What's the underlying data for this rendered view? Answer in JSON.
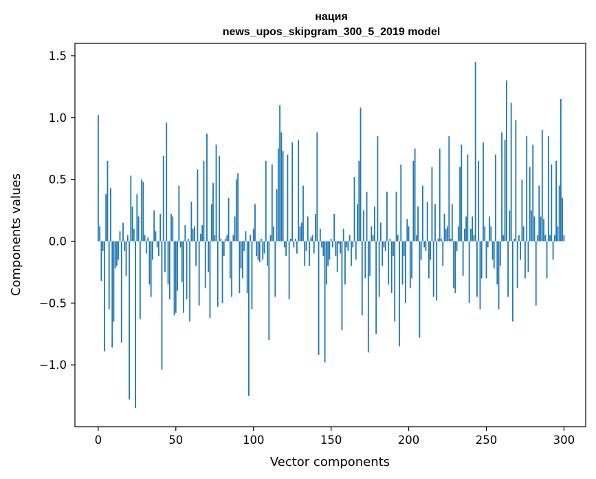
{
  "chart_data": {
    "type": "bar",
    "title": "нация",
    "subtitle": "news_upos_skipgram_300_5_2019 model",
    "xlabel": "Vector components",
    "ylabel": "Components values",
    "xlim": [
      -15,
      314
    ],
    "ylim": [
      -1.5,
      1.6
    ],
    "xticks": [
      0,
      50,
      100,
      150,
      200,
      250,
      300
    ],
    "xtick_labels": [
      "0",
      "50",
      "100",
      "150",
      "200",
      "250",
      "300"
    ],
    "yticks": [
      -1.0,
      -0.5,
      0.0,
      0.5,
      1.0,
      1.5
    ],
    "ytick_labels": [
      "−1.0",
      "−0.5",
      "0.0",
      "0.5",
      "1.0",
      "1.5"
    ],
    "grid": false,
    "bar_color": "#1f77b4",
    "values": [
      1.02,
      0.12,
      -0.32,
      -0.08,
      -0.89,
      0.38,
      0.65,
      -0.55,
      0.43,
      -0.86,
      -0.65,
      -0.22,
      -0.2,
      -0.15,
      0.08,
      -0.82,
      0.15,
      -0.08,
      -0.28,
      0.05,
      -1.28,
      0.53,
      0.28,
      0.1,
      -1.35,
      0.38,
      0.2,
      -0.63,
      0.5,
      0.48,
      0.05,
      -0.1,
      0.03,
      -0.35,
      -0.45,
      -0.15,
      0.25,
      0.08,
      -0.05,
      -0.12,
      0.22,
      -1.04,
      0.69,
      -0.25,
      0.96,
      -0.35,
      -0.47,
      0.22,
      0.2,
      -0.6,
      -0.58,
      -0.4,
      0.45,
      -0.05,
      -0.33,
      -0.58,
      0.13,
      -0.47,
      0.02,
      -0.65,
      0.32,
      0.1,
      0.12,
      -0.2,
      0.58,
      -0.52,
      0.06,
      0.13,
      0.65,
      -0.38,
      0.87,
      -0.25,
      -0.62,
      0.3,
      0.47,
      0.05,
      0.78,
      -0.53,
      0.69,
      0.02,
      -0.5,
      -0.12,
      0.02,
      0.05,
      0.35,
      -0.3,
      -0.45,
      0.05,
      0.2,
      0.5,
      0.55,
      -0.42,
      -0.22,
      -0.3,
      -0.08,
      0.08,
      -0.42,
      -1.25,
      0.05,
      -0.55,
      0.1,
      0.3,
      -0.12,
      -0.15,
      -0.17,
      0.02,
      -0.15,
      -0.1,
      0.65,
      -0.2,
      -0.8,
      0.05,
      0.62,
      0.12,
      -0.45,
      0.42,
      0.75,
      1.1,
      0.88,
      0.73,
      -0.05,
      -0.12,
      0.7,
      -0.47,
      0.02,
      0.8,
      -0.05,
      0.02,
      -0.1,
      0.82,
      0.12,
      0.15,
      0.45,
      -0.2,
      -0.08,
      0.2,
      -0.2,
      0.03,
      0.05,
      -0.1,
      0.22,
      0.88,
      -0.92,
      0.1,
      -0.05,
      -0.12,
      -0.98,
      -0.35,
      -0.2,
      -0.15,
      0.02,
      -0.05,
      0.22,
      -0.12,
      -0.25,
      -0.02,
      -0.1,
      -0.72,
      0.1,
      -0.35,
      -0.05,
      -0.08,
      0.05,
      -0.2,
      -0.05,
      0.52,
      -0.15,
      0.3,
      0.65,
      1.08,
      -0.6,
      0.25,
      -0.3,
      0.4,
      -0.9,
      -0.28,
      0.12,
      0.05,
      0.28,
      -0.75,
      0.85,
      -0.45,
      0.15,
      -0.2,
      -0.05,
      -0.08,
      0.4,
      -0.35,
      0.02,
      -0.42,
      -0.12,
      -0.65,
      0.4,
      0.05,
      -0.85,
      0.62,
      -0.35,
      -0.12,
      -0.5,
      0.18,
      0.12,
      -0.38,
      -0.3,
      0.65,
      0.75,
      0.05,
      0.28,
      -0.78,
      -0.15,
      0.45,
      -0.05,
      -0.08,
      0.32,
      -0.3,
      -0.15,
      0.6,
      -0.45,
      0.3,
      -0.48,
      0.02,
      0.75,
      0.02,
      -0.2,
      0.22,
      0.1,
      0.12,
      0.85,
      0.02,
      0.3,
      -0.38,
      -0.42,
      -0.08,
      0.12,
      0.6,
      0.78,
      -0.28,
      0.1,
      0.2,
      0.7,
      -0.5,
      0.1,
      0.2,
      0.05,
      1.45,
      -0.45,
      0.65,
      -0.55,
      -0.3,
      0.8,
      0.12,
      -0.3,
      -0.05,
      0.2,
      0.12,
      -0.15,
      -0.22,
      0.7,
      -0.35,
      -0.55,
      -0.2,
      0.88,
      0.05,
      0.82,
      1.3,
      -0.45,
      0.25,
      1.12,
      -0.65,
      0.02,
      0.98,
      -0.38,
      0.05,
      -0.15,
      0.5,
      0.12,
      -0.3,
      0.85,
      -0.25,
      0.6,
      0.25,
      0.78,
      0.2,
      -0.52,
      0.05,
      0.45,
      0.2,
      0.9,
      0.18,
      0.05,
      -0.3,
      0.85,
      0.05,
      0.62,
      -0.15,
      0.05,
      0.65,
      0.12,
      0.45,
      1.15,
      0.35,
      0.05
    ]
  }
}
